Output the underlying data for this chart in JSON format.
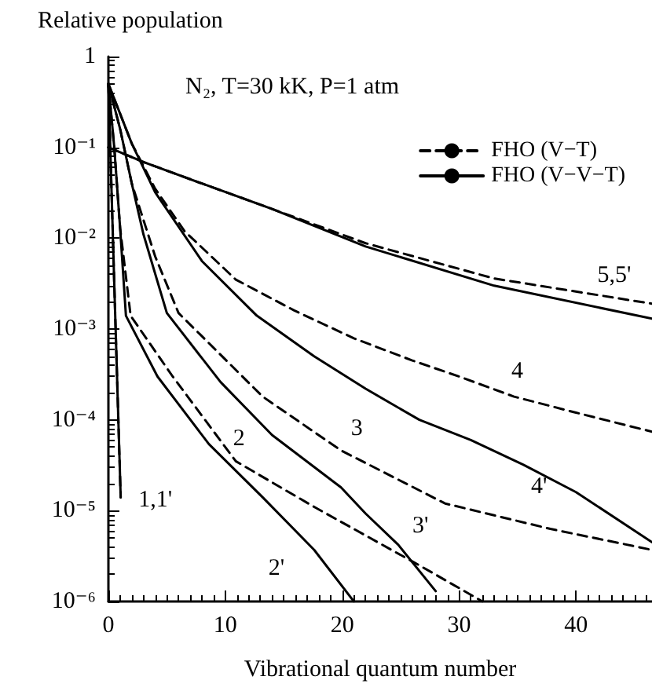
{
  "chart_data": {
    "type": "line",
    "xlabel": "Vibrational quantum number",
    "ylabel": "Relative population",
    "annotations": [
      "N₂, T=30 kK, P=1 atm",
      {
        "text": "1,1'",
        "x": 1.05,
        "y": 1.4e-05
      },
      {
        "text": "2",
        "x": 10.9,
        "y": 3.5e-05
      },
      {
        "text": "2'",
        "x": 17.6,
        "y": 3.7e-06
      },
      {
        "text": "3",
        "x": 19.9,
        "y": 4.6e-05
      },
      {
        "text": "3'",
        "x": 24.8,
        "y": 4.2e-06
      },
      {
        "text": "4",
        "x": 34.7,
        "y": 0.00018
      },
      {
        "text": "4'",
        "x": 35.5,
        "y": 3.2e-05
      },
      {
        "text": "5,5'",
        "x": 46.5,
        "y": 0.0019
      }
    ],
    "series": [
      {
        "name": "FHO (V−T)",
        "color": "#000000",
        "line_style": "dashed",
        "x": [
          0,
          0.5,
          1.05
        ],
        "values": [
          0.5,
          0.0032,
          1.4e-05
        ]
      },
      {
        "name": "FHO (V−V−T)",
        "color": "#000000",
        "line_style": "solid",
        "x": [
          0,
          0.5,
          1.05
        ],
        "values": [
          0.5,
          0.0032,
          1.4e-05
        ]
      },
      {
        "color": "#000000",
        "line_style": "dashed",
        "x": [
          0,
          0.5,
          1,
          1.9,
          5.5,
          10.9,
          17.6,
          26.6,
          32
        ],
        "values": [
          0.5,
          0.1,
          0.013,
          0.0014,
          0.0003,
          3.5e-05,
          1.1e-05,
          2.5e-06,
          1e-06
        ]
      },
      {
        "color": "#000000",
        "line_style": "solid",
        "x": [
          0,
          0.5,
          1,
          1.5,
          4.2,
          8.6,
          13.2,
          17.6,
          21
        ],
        "values": [
          0.5,
          0.1,
          0.013,
          0.0014,
          0.0003,
          5.4e-05,
          1.4e-05,
          3.7e-06,
          1e-06
        ]
      },
      {
        "color": "#000000",
        "line_style": "dashed",
        "x": [
          0,
          1,
          2,
          4,
          6,
          13.2,
          19.9,
          28.8,
          37.8,
          46.5
        ],
        "values": [
          0.5,
          0.16,
          0.04,
          0.0063,
          0.0015,
          0.00018,
          4.6e-05,
          1.2e-05,
          6.3e-06,
          3.7e-06
        ]
      },
      {
        "color": "#000000",
        "line_style": "solid",
        "x": [
          0,
          1,
          2,
          3,
          5,
          9.6,
          14,
          19.9,
          22,
          24.8,
          28
        ],
        "values": [
          0.5,
          0.16,
          0.04,
          0.011,
          0.0015,
          0.00026,
          6.8e-05,
          1.8e-05,
          9.3e-06,
          4.2e-06,
          1.3e-06
        ]
      },
      {
        "color": "#000000",
        "line_style": "dashed",
        "x": [
          0,
          2,
          4,
          6.5,
          10.9,
          15.9,
          21,
          26,
          30,
          34.7,
          40,
          46.5
        ],
        "values": [
          0.5,
          0.11,
          0.035,
          0.012,
          0.0035,
          0.0016,
          0.00079,
          0.00045,
          0.0003,
          0.00018,
          0.00012,
          7.4e-05
        ]
      },
      {
        "color": "#000000",
        "line_style": "solid",
        "x": [
          0,
          2,
          4,
          8,
          12.7,
          17.6,
          22,
          26.6,
          31,
          35.5,
          40,
          46.5
        ],
        "values": [
          0.5,
          0.11,
          0.032,
          0.0056,
          0.0014,
          0.0005,
          0.00022,
          0.0001,
          6e-05,
          3.2e-05,
          1.6e-05,
          4.5e-06
        ]
      },
      {
        "color": "#000000",
        "line_style": "dashed",
        "x": [
          0,
          3,
          8,
          14,
          22,
          33,
          46.5
        ],
        "values": [
          0.1,
          0.069,
          0.04,
          0.021,
          0.0088,
          0.0036,
          0.0019
        ]
      },
      {
        "color": "#000000",
        "line_style": "solid",
        "x": [
          0,
          3,
          8,
          14,
          22,
          33,
          46.5
        ],
        "values": [
          0.1,
          0.069,
          0.04,
          0.021,
          0.0081,
          0.003,
          0.0013
        ]
      }
    ],
    "log": "y",
    "xlim": [
      0,
      46.5
    ],
    "ylim": [
      1e-06,
      1
    ],
    "xticks": [
      0,
      10,
      20,
      30,
      40
    ],
    "yticks": [
      1,
      {
        "value": 0.1,
        "label": "10⁻¹"
      },
      {
        "value": 0.01,
        "label": "10⁻²"
      },
      {
        "value": 0.001,
        "label": "10⁻³"
      },
      {
        "value": 0.0001,
        "label": "10⁻⁴"
      },
      {
        "value": 1e-05,
        "label": "10⁻⁵"
      },
      {
        "value": 1e-06,
        "label": "10⁻⁶"
      }
    ],
    "grid": false,
    "legend": "top right",
    "marker": "none"
  }
}
